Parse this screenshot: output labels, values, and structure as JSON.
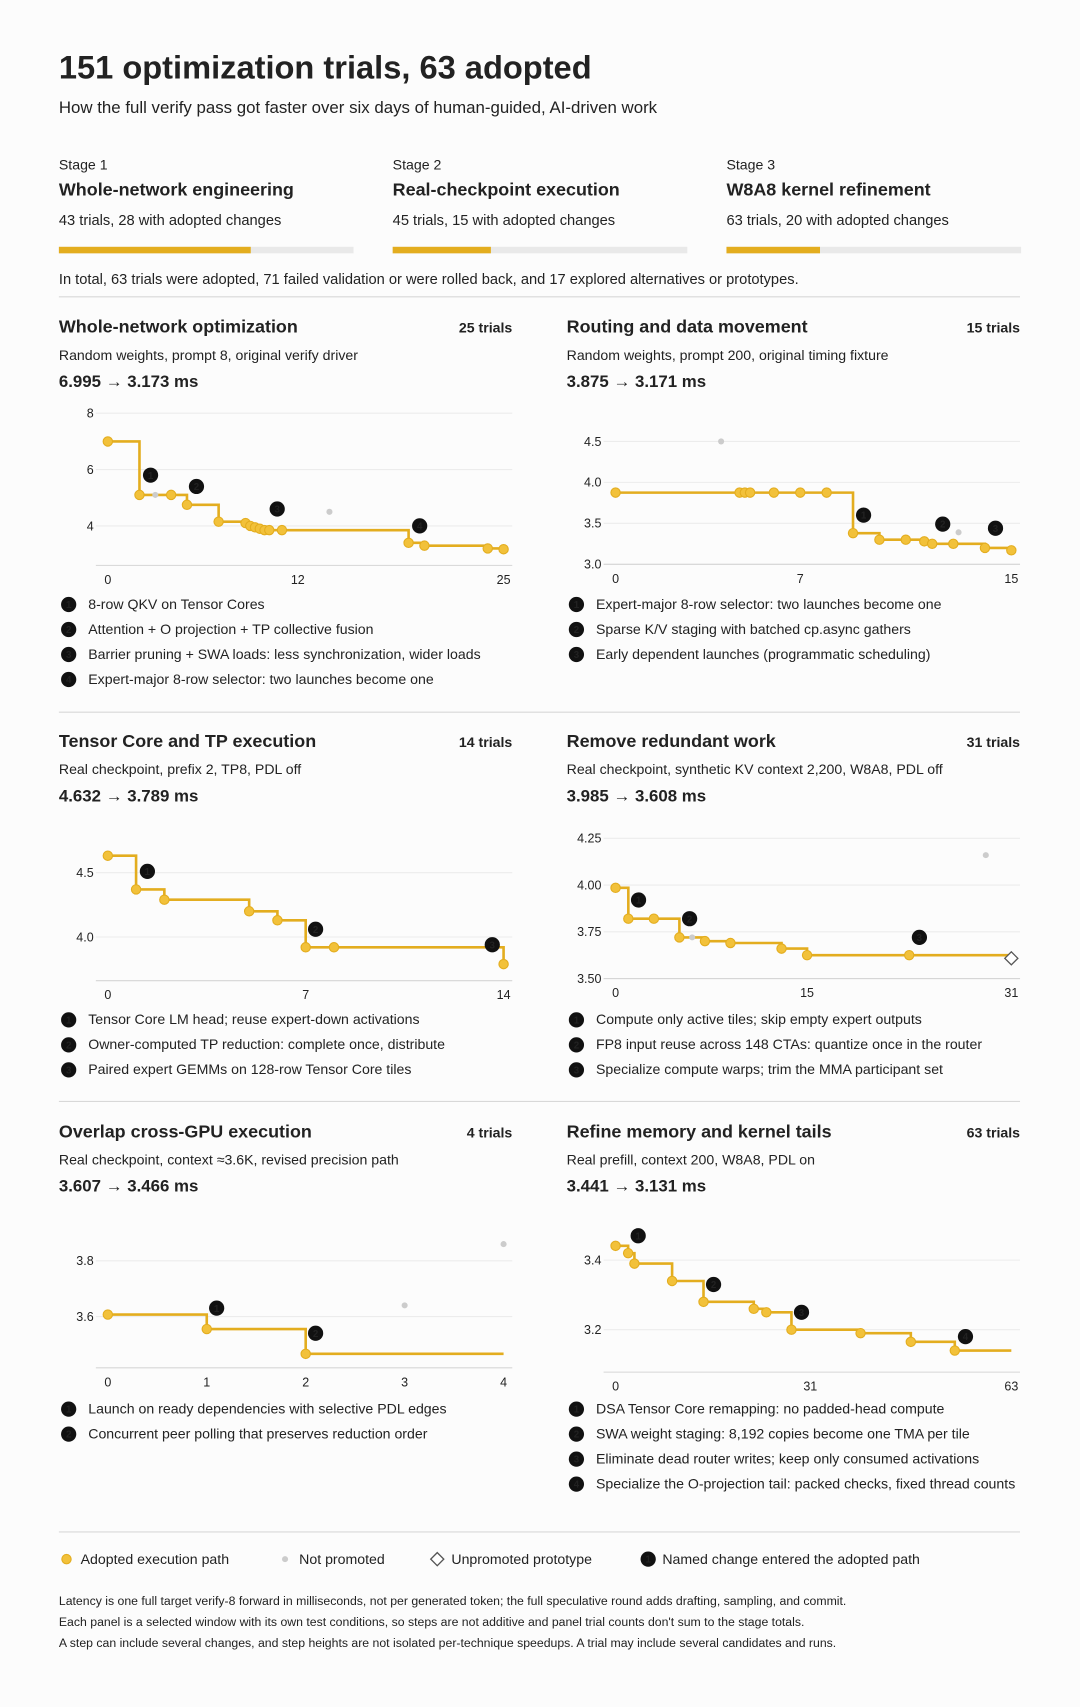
{
  "header": {
    "title": "151 optimization trials, 63 adopted",
    "subtitle": "How the full verify pass got faster over six days of human-guided, AI-driven work"
  },
  "stages": [
    {
      "label": "Stage 1",
      "title": "Whole-network engineering",
      "detail": "43 trials, 28 with adopted changes",
      "trials": 43,
      "adopted": 28
    },
    {
      "label": "Stage 2",
      "title": "Real-checkpoint execution",
      "detail": "45 trials, 15 with adopted changes",
      "trials": 45,
      "adopted": 15
    },
    {
      "label": "Stage 3",
      "title": "W8A8 kernel refinement",
      "detail": "63 trials, 20 with adopted changes",
      "trials": 63,
      "adopted": 20
    }
  ],
  "summary": "In total, 63 trials were adopted, 71 failed validation or were rolled back, and 17 explored alternatives or prototypes.",
  "chart_data": [
    {
      "type": "line",
      "step": true,
      "title": "Whole-network optimization",
      "trials": "25 trials",
      "subtitle": "Random weights, prompt 8, original verify driver",
      "result": "6.995 → 3.173 ms",
      "xlim": [
        0,
        25
      ],
      "xticks": [
        0,
        12,
        25
      ],
      "ylim": [
        2.6,
        8
      ],
      "yticks": [
        4,
        6,
        8
      ],
      "adopted": {
        "x": [
          0,
          2,
          4,
          5,
          7,
          8.7,
          9,
          9.3,
          9.6,
          9.9,
          10.2,
          11,
          19,
          20,
          24,
          25
        ],
        "values": [
          6.995,
          5.1,
          5.1,
          4.75,
          4.15,
          4.1,
          4.0,
          3.95,
          3.9,
          3.85,
          3.85,
          3.85,
          3.4,
          3.3,
          3.2,
          3.173
        ]
      },
      "not_promoted": {
        "x": [
          3,
          14
        ],
        "values": [
          5.1,
          4.5
        ]
      },
      "markers": [
        {
          "label": "1",
          "x": 2.7,
          "y": 5.8,
          "text": "8-row QKV on Tensor Cores"
        },
        {
          "label": "2",
          "x": 5.6,
          "y": 5.4,
          "text": "Attention + O projection + TP collective fusion"
        },
        {
          "label": "3",
          "x": 10.7,
          "y": 4.6,
          "text": "Barrier pruning + SWA loads: less synchronization, wider loads"
        },
        {
          "label": "4",
          "x": 19.7,
          "y": 4.0,
          "text": "Expert-major 8-row selector: two launches become one"
        }
      ]
    },
    {
      "type": "line",
      "step": true,
      "title": "Routing and data movement",
      "trials": "15 trials",
      "subtitle": "Random weights, prompt 200, original timing fixture",
      "result": "3.875 → 3.171 ms",
      "xlim": [
        0,
        15
      ],
      "xticks": [
        0,
        7,
        15
      ],
      "ylim": [
        3.0,
        4.5
      ],
      "yticks": [
        {
          "value": 3,
          "label": "3.0"
        },
        3.5,
        {
          "value": 4,
          "label": "4.0"
        },
        4.5
      ],
      "adopted": {
        "x": [
          0,
          4.7,
          4.9,
          5.1,
          6,
          7,
          8,
          9,
          10,
          11,
          11.7,
          12,
          12.8,
          14,
          15
        ],
        "values": [
          3.875,
          3.875,
          3.875,
          3.875,
          3.875,
          3.875,
          3.875,
          3.38,
          3.3,
          3.3,
          3.28,
          3.25,
          3.25,
          3.2,
          3.171
        ]
      },
      "not_promoted": {
        "x": [
          4,
          13
        ],
        "values": [
          4.5,
          3.39
        ]
      },
      "markers": [
        {
          "label": "1",
          "x": 9.4,
          "y": 3.6,
          "text": "Expert-major 8-row selector: two launches become one"
        },
        {
          "label": "2",
          "x": 12.4,
          "y": 3.49,
          "text": "Sparse K/V staging with batched cp.async gathers"
        },
        {
          "label": "3",
          "x": 14.4,
          "y": 3.44,
          "text": "Early dependent launches (programmatic scheduling)"
        }
      ]
    },
    {
      "type": "line",
      "step": true,
      "title": "Tensor Core and TP execution",
      "trials": "14 trials",
      "subtitle": "Real checkpoint, prefix 2, TP8, PDL off",
      "result": "4.632 → 3.789 ms",
      "xlim": [
        0,
        14
      ],
      "xticks": [
        0,
        7,
        14
      ],
      "ylim": [
        3.66,
        4.7
      ],
      "yticks": [
        {
          "value": 4,
          "label": "4.0"
        },
        4.5
      ],
      "adopted": {
        "x": [
          0,
          1,
          2,
          5,
          6,
          7,
          8,
          14
        ],
        "values": [
          4.632,
          4.37,
          4.29,
          4.2,
          4.13,
          3.92,
          3.92,
          3.789
        ]
      },
      "markers": [
        {
          "label": "1",
          "x": 1.4,
          "y": 4.51,
          "text": "Tensor Core LM head; reuse expert-down activations"
        },
        {
          "label": "2",
          "x": 7.35,
          "y": 4.06,
          "text": "Owner-computed TP reduction: complete once, distribute"
        },
        {
          "label": "3",
          "x": 13.6,
          "y": 3.94,
          "text": "Paired expert GEMMs on 128-row Tensor Core tiles"
        }
      ]
    },
    {
      "type": "line",
      "step": true,
      "title": "Remove redundant work",
      "trials": "31 trials",
      "subtitle": "Real checkpoint, synthetic KV context 2,200, W8A8, PDL off",
      "result": "3.985 → 3.608 ms",
      "xlim": [
        0,
        31
      ],
      "xticks": [
        0,
        15,
        31
      ],
      "ylim": [
        3.5,
        4.25
      ],
      "yticks": [
        {
          "value": 3.5,
          "label": "3.50"
        },
        3.75,
        {
          "value": 4,
          "label": "4.00"
        },
        4.25
      ],
      "adopted": {
        "x": [
          0,
          1,
          3,
          5,
          7,
          9,
          13,
          15,
          23
        ],
        "values": [
          3.985,
          3.82,
          3.82,
          3.72,
          3.7,
          3.69,
          3.66,
          3.625,
          3.625
        ]
      },
      "not_promoted": {
        "x": [
          6,
          29
        ],
        "values": [
          3.72,
          4.16
        ]
      },
      "prototype": {
        "x": [
          31
        ],
        "values": [
          3.608
        ]
      },
      "markers": [
        {
          "label": "1",
          "x": 1.8,
          "y": 3.92,
          "text": "Compute only active tiles; skip empty expert outputs"
        },
        {
          "label": "2",
          "x": 5.8,
          "y": 3.82,
          "text": "FP8 input reuse across 148 CTAs: quantize once in the router"
        },
        {
          "label": "3",
          "x": 23.8,
          "y": 3.72,
          "text": "Specialize compute warps; trim the MMA participant set"
        }
      ]
    },
    {
      "type": "line",
      "step": true,
      "title": "Overlap cross-GPU execution",
      "trials": "4 trials",
      "subtitle": "Real checkpoint, context ≈3.6K, revised precision path",
      "result": "3.607 → 3.466 ms",
      "xlim": [
        0,
        4
      ],
      "xticks": [
        0,
        1,
        2,
        3,
        4
      ],
      "ylim": [
        3.416,
        3.9
      ],
      "yticks": [
        3.6,
        3.8
      ],
      "adopted": {
        "x": [
          0,
          1,
          2
        ],
        "values": [
          3.607,
          3.555,
          3.466
        ]
      },
      "not_promoted": {
        "x": [
          3,
          4
        ],
        "values": [
          3.64,
          3.86
        ]
      },
      "markers": [
        {
          "label": "1",
          "x": 1.1,
          "y": 3.63,
          "text": "Launch on ready dependencies with selective PDL edges"
        },
        {
          "label": "2",
          "x": 2.1,
          "y": 3.54,
          "text": "Concurrent peer polling that preserves reduction order"
        }
      ]
    },
    {
      "type": "line",
      "step": true,
      "title": "Refine memory and kernel tails",
      "trials": "63 trials",
      "subtitle": "Real prefill, context 200, W8A8, PDL on",
      "result": "3.441 → 3.131 ms",
      "xlim": [
        0,
        63
      ],
      "xticks": [
        0,
        31,
        63
      ],
      "ylim": [
        3.078,
        3.5
      ],
      "yticks": [
        3.2,
        3.4
      ],
      "adopted": {
        "x": [
          0,
          2,
          3,
          9,
          14,
          22,
          24,
          28,
          39,
          47,
          54
        ],
        "values": [
          3.441,
          3.42,
          3.39,
          3.34,
          3.28,
          3.26,
          3.25,
          3.2,
          3.19,
          3.165,
          3.14
        ]
      },
      "markers": [
        {
          "label": "1",
          "x": 3.6,
          "y": 3.47,
          "text": "DSA Tensor Core remapping: no padded-head compute"
        },
        {
          "label": "2",
          "x": 15.6,
          "y": 3.33,
          "text": "SWA weight staging: 8,192 copies become one TMA per tile"
        },
        {
          "label": "3",
          "x": 29.6,
          "y": 3.25,
          "text": "Eliminate dead router writes; keep only consumed activations"
        },
        {
          "label": "4",
          "x": 55.7,
          "y": 3.18,
          "text": "Specialize the O-projection tail: packed checks, fixed thread counts"
        }
      ]
    }
  ],
  "legend": [
    {
      "label": "Adopted execution path",
      "color": "#e3ad1f"
    },
    {
      "label": "Not promoted",
      "color": "#cccccc"
    },
    {
      "label": "Unpromoted prototype",
      "color": "#555555"
    },
    {
      "label": "Named change entered the adopted path",
      "symbol": "1",
      "color": "#111111"
    }
  ],
  "footnotes": [
    "Latency is one full target verify-8 forward in milliseconds, not per generated token; the full speculative round adds drafting, sampling, and commit.",
    "Each panel is a selected window with its own test conditions, so steps are not additive and panel trial counts don't sum to the stage totals.",
    "A step can include several changes, and step heights are not isolated per-technique speedups. A trial may include several candidates and runs."
  ]
}
